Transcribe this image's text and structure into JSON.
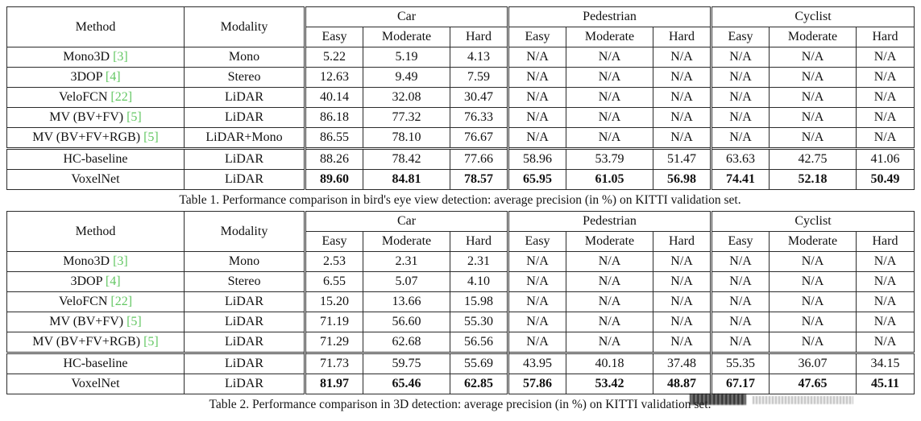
{
  "colors": {
    "background": "#ffffff",
    "text": "#111111",
    "border": "#2b2b2b",
    "citation_green": "#63c763"
  },
  "tables": [
    {
      "caption": "Table 1. Performance comparison in bird's eye view detection: average precision (in %) on KITTI validation set.",
      "header": {
        "method_label": "Method",
        "modality_label": "Modality",
        "groups": [
          {
            "label": "Car",
            "sub": [
              "Easy",
              "Moderate",
              "Hard"
            ]
          },
          {
            "label": "Pedestrian",
            "sub": [
              "Easy",
              "Moderate",
              "Hard"
            ]
          },
          {
            "label": "Cyclist",
            "sub": [
              "Easy",
              "Moderate",
              "Hard"
            ]
          }
        ]
      },
      "rows": [
        {
          "method": "Mono3D",
          "cite": "[3]",
          "modality": "Mono",
          "values": [
            "5.22",
            "5.19",
            "4.13",
            "N/A",
            "N/A",
            "N/A",
            "N/A",
            "N/A",
            "N/A"
          ]
        },
        {
          "method": "3DOP",
          "cite": "[4]",
          "modality": "Stereo",
          "values": [
            "12.63",
            "9.49",
            "7.59",
            "N/A",
            "N/A",
            "N/A",
            "N/A",
            "N/A",
            "N/A"
          ]
        },
        {
          "method": "VeloFCN",
          "cite": "[22]",
          "modality": "LiDAR",
          "values": [
            "40.14",
            "32.08",
            "30.47",
            "N/A",
            "N/A",
            "N/A",
            "N/A",
            "N/A",
            "N/A"
          ]
        },
        {
          "method": "MV (BV+FV)",
          "cite": "[5]",
          "modality": "LiDAR",
          "values": [
            "86.18",
            "77.32",
            "76.33",
            "N/A",
            "N/A",
            "N/A",
            "N/A",
            "N/A",
            "N/A"
          ]
        },
        {
          "method": "MV (BV+FV+RGB)",
          "cite": "[5]",
          "modality": "LiDAR+Mono",
          "values": [
            "86.55",
            "78.10",
            "76.67",
            "N/A",
            "N/A",
            "N/A",
            "N/A",
            "N/A",
            "N/A"
          ]
        },
        {
          "method": "HC-baseline",
          "cite": "",
          "modality": "LiDAR",
          "separator_above": true,
          "values": [
            "88.26",
            "78.42",
            "77.66",
            "58.96",
            "53.79",
            "51.47",
            "63.63",
            "42.75",
            "41.06"
          ]
        },
        {
          "method": "VoxelNet",
          "cite": "",
          "modality": "LiDAR",
          "bold_values": true,
          "values": [
            "89.60",
            "84.81",
            "78.57",
            "65.95",
            "61.05",
            "56.98",
            "74.41",
            "52.18",
            "50.49"
          ]
        }
      ]
    },
    {
      "caption": "Table 2. Performance comparison in 3D detection: average precision (in %) on KITTI validation set.",
      "header": {
        "method_label": "Method",
        "modality_label": "Modality",
        "groups": [
          {
            "label": "Car",
            "sub": [
              "Easy",
              "Moderate",
              "Hard"
            ]
          },
          {
            "label": "Pedestrian",
            "sub": [
              "Easy",
              "Moderate",
              "Hard"
            ]
          },
          {
            "label": "Cyclist",
            "sub": [
              "Easy",
              "Moderate",
              "Hard"
            ]
          }
        ]
      },
      "rows": [
        {
          "method": "Mono3D",
          "cite": "[3]",
          "modality": "Mono",
          "values": [
            "2.53",
            "2.31",
            "2.31",
            "N/A",
            "N/A",
            "N/A",
            "N/A",
            "N/A",
            "N/A"
          ]
        },
        {
          "method": "3DOP",
          "cite": "[4]",
          "modality": "Stereo",
          "values": [
            "6.55",
            "5.07",
            "4.10",
            "N/A",
            "N/A",
            "N/A",
            "N/A",
            "N/A",
            "N/A"
          ]
        },
        {
          "method": "VeloFCN",
          "cite": "[22]",
          "modality": "LiDAR",
          "values": [
            "15.20",
            "13.66",
            "15.98",
            "N/A",
            "N/A",
            "N/A",
            "N/A",
            "N/A",
            "N/A"
          ]
        },
        {
          "method": "MV (BV+FV)",
          "cite": "[5]",
          "modality": "LiDAR",
          "values": [
            "71.19",
            "56.60",
            "55.30",
            "N/A",
            "N/A",
            "N/A",
            "N/A",
            "N/A",
            "N/A"
          ]
        },
        {
          "method": "MV (BV+FV+RGB)",
          "cite": "[5]",
          "modality": "LiDAR",
          "values": [
            "71.29",
            "62.68",
            "56.56",
            "N/A",
            "N/A",
            "N/A",
            "N/A",
            "N/A",
            "N/A"
          ]
        },
        {
          "method": "HC-baseline",
          "cite": "",
          "modality": "LiDAR",
          "separator_above": true,
          "values": [
            "71.73",
            "59.75",
            "55.69",
            "43.95",
            "40.18",
            "37.48",
            "55.35",
            "36.07",
            "34.15"
          ]
        },
        {
          "method": "VoxelNet",
          "cite": "",
          "modality": "LiDAR",
          "bold_values": true,
          "values": [
            "81.97",
            "65.46",
            "62.85",
            "57.86",
            "53.42",
            "48.87",
            "67.17",
            "47.65",
            "45.11"
          ]
        }
      ]
    }
  ]
}
